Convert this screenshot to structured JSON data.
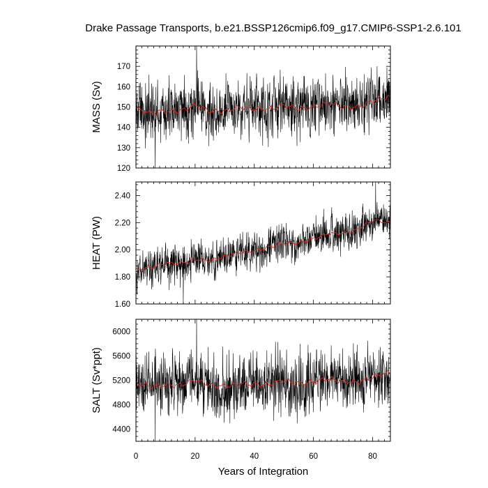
{
  "title": "Drake Passage Transports, b.e21.BSSP126cmip6.f09_g17.CMIP6-SSP1-2.6.101",
  "chart_data": [
    {
      "type": "line",
      "ylabel": "MASS (Sv)",
      "xlim": [
        0,
        86
      ],
      "ylim": [
        120,
        180
      ],
      "yticks": [
        120,
        130,
        140,
        150,
        160,
        170
      ],
      "ytick_labels": [
        "120",
        "130",
        "140",
        "150",
        "160",
        "170"
      ],
      "series": [
        {
          "role": "monthly",
          "color": "#000000",
          "mean": 149,
          "spread": 7.5,
          "min_point": {
            "x": 6.5,
            "y": 120
          },
          "max_point": {
            "x": 20.5,
            "y": 180
          }
        },
        {
          "role": "running-mean",
          "color": "#e8251f",
          "x": [
            0,
            5,
            10,
            15,
            20,
            25,
            30,
            35,
            40,
            45,
            50,
            55,
            60,
            65,
            70,
            75,
            80,
            85
          ],
          "y": [
            149,
            147,
            148,
            148,
            151,
            148,
            148,
            150,
            149,
            149,
            151,
            149,
            150,
            152,
            150,
            150,
            153,
            155
          ]
        }
      ]
    },
    {
      "type": "line",
      "ylabel": "HEAT (PW)",
      "xlim": [
        0,
        86
      ],
      "ylim": [
        1.6,
        2.5
      ],
      "yticks": [
        1.6,
        1.8,
        2.0,
        2.2,
        2.4
      ],
      "ytick_labels": [
        "1.60",
        "1.80",
        "2.00",
        "2.20",
        "2.40"
      ],
      "series": [
        {
          "role": "monthly",
          "color": "#000000",
          "spread": 0.07,
          "min_point": {
            "x": 16,
            "y": 1.6
          },
          "max_point": {
            "x": 81,
            "y": 2.5
          }
        },
        {
          "role": "running-mean",
          "color": "#e8251f",
          "x": [
            0,
            5,
            10,
            15,
            20,
            25,
            30,
            35,
            40,
            45,
            50,
            55,
            60,
            65,
            70,
            75,
            80,
            85
          ],
          "y": [
            1.85,
            1.87,
            1.9,
            1.9,
            1.93,
            1.92,
            1.95,
            1.98,
            1.99,
            2.02,
            2.05,
            2.05,
            2.08,
            2.12,
            2.12,
            2.15,
            2.22,
            2.2
          ]
        }
      ]
    },
    {
      "type": "line",
      "xlabel": "Years of Integration",
      "ylabel": "SALT (Sv*ppt)",
      "xlim": [
        0,
        86
      ],
      "ylim": [
        4200,
        6200
      ],
      "yticks": [
        4400,
        4800,
        5200,
        5600,
        6000
      ],
      "ytick_labels": [
        "4400",
        "4800",
        "5200",
        "5600",
        "6000"
      ],
      "xticks": [
        0,
        20,
        40,
        60,
        80
      ],
      "xtick_labels": [
        "0",
        "20",
        "40",
        "60",
        "80"
      ],
      "series": [
        {
          "role": "monthly",
          "color": "#000000",
          "mean": 5150,
          "spread": 250,
          "min_point": {
            "x": 6.5,
            "y": 4200
          },
          "max_point": {
            "x": 20.5,
            "y": 6200
          }
        },
        {
          "role": "running-mean",
          "color": "#e8251f",
          "x": [
            0,
            5,
            10,
            15,
            20,
            25,
            30,
            35,
            40,
            45,
            50,
            55,
            60,
            65,
            70,
            75,
            80,
            85
          ],
          "y": [
            5150,
            5100,
            5120,
            5120,
            5200,
            5120,
            5100,
            5150,
            5130,
            5130,
            5200,
            5150,
            5170,
            5230,
            5180,
            5170,
            5250,
            5320
          ]
        }
      ]
    }
  ]
}
